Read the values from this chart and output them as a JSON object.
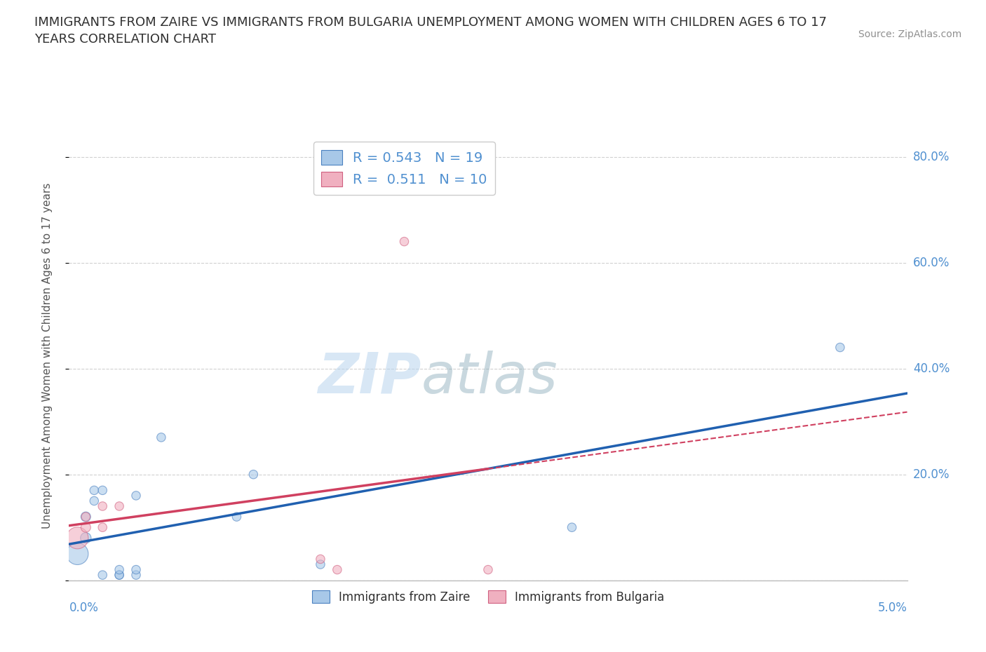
{
  "title": "IMMIGRANTS FROM ZAIRE VS IMMIGRANTS FROM BULGARIA UNEMPLOYMENT AMONG WOMEN WITH CHILDREN AGES 6 TO 17\nYEARS CORRELATION CHART",
  "source": "Source: ZipAtlas.com",
  "xlabel_bottom_left": "0.0%",
  "xlabel_bottom_right": "5.0%",
  "ylabel": "Unemployment Among Women with Children Ages 6 to 17 years",
  "ytick_labels": [
    "0.0%",
    "20.0%",
    "40.0%",
    "60.0%",
    "80.0%"
  ],
  "ytick_values": [
    0.0,
    0.2,
    0.4,
    0.6,
    0.8
  ],
  "xlim": [
    0.0,
    0.05
  ],
  "ylim": [
    0.0,
    0.85
  ],
  "watermark_zip": "ZIP",
  "watermark_atlas": "atlas",
  "legend_label_zaire": "R = 0.543   N = 19",
  "legend_label_bulgaria": "R =  0.511   N = 10",
  "color_zaire": "#a8c8e8",
  "color_zaire_edge": "#4a80c0",
  "color_zaire_line": "#2060b0",
  "color_bulgaria": "#f0b0c0",
  "color_bulgaria_edge": "#d06080",
  "color_bulgaria_line": "#d04060",
  "zaire_x": [
    0.0005,
    0.001,
    0.001,
    0.0015,
    0.0015,
    0.002,
    0.002,
    0.003,
    0.003,
    0.003,
    0.004,
    0.004,
    0.004,
    0.0055,
    0.01,
    0.011,
    0.015,
    0.03,
    0.046
  ],
  "zaire_y": [
    0.05,
    0.08,
    0.12,
    0.15,
    0.17,
    0.01,
    0.17,
    0.01,
    0.01,
    0.02,
    0.01,
    0.02,
    0.16,
    0.27,
    0.12,
    0.2,
    0.03,
    0.1,
    0.44
  ],
  "zaire_sizes": [
    500,
    120,
    100,
    80,
    80,
    80,
    80,
    80,
    80,
    80,
    80,
    80,
    80,
    80,
    80,
    80,
    80,
    80,
    80
  ],
  "bulgaria_x": [
    0.0005,
    0.001,
    0.001,
    0.002,
    0.002,
    0.003,
    0.015,
    0.016,
    0.02,
    0.025
  ],
  "bulgaria_y": [
    0.08,
    0.1,
    0.12,
    0.1,
    0.14,
    0.14,
    0.04,
    0.02,
    0.64,
    0.02
  ],
  "bulgaria_sizes": [
    500,
    100,
    80,
    80,
    80,
    80,
    80,
    80,
    80,
    80
  ],
  "bg_color": "#ffffff",
  "grid_color": "#cccccc",
  "title_color": "#303030",
  "tick_color": "#5090d0",
  "source_color": "#909090",
  "legend_text_color": "#5090d0",
  "bottom_legend_color": "#303030"
}
